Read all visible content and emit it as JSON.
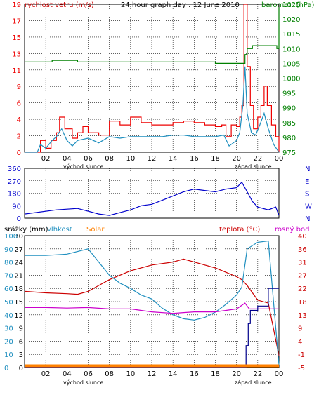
{
  "colors": {
    "wind": "#ee0000",
    "gust": "#ee0000",
    "wind_avg": "#1f8fbf",
    "pressure": "#008000",
    "direction": "#0000cc",
    "temperature": "#cc0000",
    "humidity": "#1f8fbf",
    "dew_point": "#cc00cc",
    "rain": "#00008b",
    "solar": "#ff8000",
    "grid": "#000000"
  },
  "top_panel": {
    "title": "24 hour graph day : 12 June 2010",
    "left_label": "rychlost vetru (m/s)",
    "right_label": "barometr (hPa)"
  },
  "middle_panel": {},
  "bottom_panel": {
    "labels": {
      "rain": "srážky (mm)",
      "humidity": "vlhkost",
      "solar": "Solar",
      "temperature": "teplota (°C)",
      "dew_point": "rosný bod"
    }
  },
  "x_axis": {
    "ticks": [
      "02",
      "04",
      "06",
      "08",
      "10",
      "12",
      "14",
      "16",
      "18",
      "20",
      "22",
      "00"
    ],
    "sunrise_label": "východ slunce",
    "sunset_label": "západ slunce"
  },
  "chart_data": [
    {
      "type": "line",
      "name": "wind",
      "x_unit": "hour",
      "y_left": {
        "label": "rychlost vetru (m/s)",
        "ticks": [
          "0",
          "2",
          "4",
          "6",
          "9",
          "11",
          "13",
          "15",
          "17",
          "19"
        ],
        "ylim": [
          0,
          19
        ]
      },
      "y_right": {
        "label": "barometr (hPa)",
        "ticks": [
          "975",
          "980",
          "985",
          "990",
          "995",
          "1000",
          "1005",
          "1010",
          "1015",
          "1020",
          "1025"
        ],
        "ylim": [
          975,
          1025
        ]
      },
      "series": [
        {
          "name": "",
          "kind": "gust",
          "points": [
            [
              0,
              0
            ],
            [
              1.2,
              0
            ],
            [
              1.5,
              1.5
            ],
            [
              2,
              0.5
            ],
            [
              2.5,
              1.5
            ],
            [
              3,
              2.5
            ],
            [
              3.3,
              4.5
            ],
            [
              3.8,
              3
            ],
            [
              4.5,
              1.8
            ],
            [
              5,
              2.5
            ],
            [
              5.5,
              3.3
            ],
            [
              6,
              2.5
            ],
            [
              7,
              2.2
            ],
            [
              8,
              4
            ],
            [
              9,
              3.5
            ],
            [
              10,
              4.5
            ],
            [
              11,
              3.8
            ],
            [
              12,
              3.5
            ],
            [
              13,
              3.5
            ],
            [
              14,
              3.8
            ],
            [
              15,
              4
            ],
            [
              16,
              3.8
            ],
            [
              17,
              3.5
            ],
            [
              18,
              3.3
            ],
            [
              18.6,
              3.5
            ],
            [
              19,
              2
            ],
            [
              19.5,
              3.5
            ],
            [
              20,
              3.3
            ],
            [
              20.3,
              4.5
            ],
            [
              20.5,
              6
            ],
            [
              20.7,
              19
            ],
            [
              21,
              11
            ],
            [
              21.3,
              6
            ],
            [
              21.6,
              3
            ],
            [
              22,
              4.5
            ],
            [
              22.3,
              6
            ],
            [
              22.6,
              8.5
            ],
            [
              22.9,
              6
            ],
            [
              23.3,
              3.5
            ],
            [
              23.7,
              2
            ],
            [
              24,
              0
            ]
          ]
        },
        {
          "name": "",
          "kind": "average",
          "points": [
            [
              0,
              0
            ],
            [
              1.2,
              0
            ],
            [
              1.5,
              1
            ],
            [
              2,
              0.5
            ],
            [
              2.6,
              1.5
            ],
            [
              3,
              2
            ],
            [
              3.5,
              3
            ],
            [
              4,
              1.5
            ],
            [
              4.5,
              0.8
            ],
            [
              5,
              1.5
            ],
            [
              6,
              1.8
            ],
            [
              7,
              1.2
            ],
            [
              8,
              2
            ],
            [
              9,
              1.8
            ],
            [
              10,
              2
            ],
            [
              11,
              2
            ],
            [
              12,
              2
            ],
            [
              13,
              2
            ],
            [
              14,
              2.2
            ],
            [
              15,
              2.2
            ],
            [
              16,
              2
            ],
            [
              17,
              2
            ],
            [
              18,
              2
            ],
            [
              18.8,
              2.2
            ],
            [
              19.3,
              0.8
            ],
            [
              20,
              1.5
            ],
            [
              20.3,
              2.5
            ],
            [
              20.6,
              6
            ],
            [
              20.8,
              11
            ],
            [
              21,
              5
            ],
            [
              21.4,
              2.5
            ],
            [
              21.8,
              2.2
            ],
            [
              22.2,
              3.5
            ],
            [
              22.6,
              5
            ],
            [
              23,
              3
            ],
            [
              23.5,
              1
            ],
            [
              24,
              0
            ]
          ]
        },
        {
          "name": "",
          "kind": "pressure",
          "axis": "right",
          "points": [
            [
              0,
              1005.5
            ],
            [
              2.4,
              1005.5
            ],
            [
              2.6,
              1006
            ],
            [
              4.6,
              1006
            ],
            [
              5,
              1005.5
            ],
            [
              10,
              1005.5
            ],
            [
              16,
              1005.5
            ],
            [
              17.8,
              1005.5
            ],
            [
              18,
              1005
            ],
            [
              20.5,
              1005
            ],
            [
              20.8,
              1008
            ],
            [
              21,
              1010
            ],
            [
              21.5,
              1011
            ],
            [
              23.8,
              1010
            ],
            [
              24,
              1024
            ]
          ]
        }
      ]
    },
    {
      "type": "scatter",
      "name": "wind_direction",
      "x_unit": "hour",
      "y_left": {
        "ticks": [
          "0",
          "90",
          "180",
          "270",
          "360"
        ],
        "ylim": [
          0,
          360
        ]
      },
      "y_right": {
        "ticks": [
          "N",
          "W",
          "S",
          "E",
          "N"
        ]
      },
      "series": [
        {
          "name": "",
          "points": [
            [
              0,
              30
            ],
            [
              3,
              60
            ],
            [
              5,
              70
            ],
            [
              7,
              30
            ],
            [
              8,
              20
            ],
            [
              9,
              40
            ],
            [
              10,
              60
            ],
            [
              11,
              90
            ],
            [
              12,
              100
            ],
            [
              13,
              130
            ],
            [
              14,
              160
            ],
            [
              15,
              190
            ],
            [
              16,
              210
            ],
            [
              17,
              200
            ],
            [
              18,
              190
            ],
            [
              19,
              210
            ],
            [
              20,
              220
            ],
            [
              20.5,
              260
            ],
            [
              21,
              190
            ],
            [
              21.5,
              120
            ],
            [
              22,
              80
            ],
            [
              23,
              60
            ],
            [
              23.7,
              80
            ],
            [
              24,
              20
            ]
          ]
        }
      ]
    },
    {
      "type": "line",
      "name": "temperature_humidity",
      "x_unit": "hour",
      "y_left": {
        "label": "srážky (mm)",
        "ticks": [
          "0",
          "3",
          "6",
          "9",
          "12",
          "15",
          "18",
          "21",
          "24",
          "27",
          "30"
        ],
        "ylim": [
          0,
          30
        ]
      },
      "y_left_humidity": {
        "label": "vlhkost",
        "ticks": [
          "0",
          "10",
          "20",
          "30",
          "40",
          "50",
          "60",
          "70",
          "80",
          "90",
          "100"
        ],
        "ylim": [
          0,
          100
        ]
      },
      "y_right": {
        "label": "teplota (°C)",
        "ticks": [
          "-5",
          "-1",
          "4",
          "9",
          "13",
          "18",
          "22",
          "27",
          "31",
          "36",
          "40"
        ],
        "ylim": [
          -5,
          40
        ]
      },
      "series": [
        {
          "name": "teplota (°C)",
          "axis": "right",
          "points": [
            [
              0,
              21
            ],
            [
              2,
              20.5
            ],
            [
              4,
              20.2
            ],
            [
              5,
              20
            ],
            [
              6,
              21
            ],
            [
              7,
              23
            ],
            [
              8,
              25
            ],
            [
              10,
              28
            ],
            [
              12,
              30
            ],
            [
              14,
              31
            ],
            [
              15,
              32
            ],
            [
              16,
              31
            ],
            [
              17,
              30
            ],
            [
              18,
              29
            ],
            [
              19,
              27.5
            ],
            [
              20,
              26
            ],
            [
              20.5,
              25
            ],
            [
              21,
              23
            ],
            [
              22,
              18
            ],
            [
              23,
              17
            ],
            [
              24,
              -1
            ]
          ]
        },
        {
          "name": "vlhkost",
          "axis": "humidity",
          "points": [
            [
              0,
              85
            ],
            [
              2,
              85
            ],
            [
              4,
              86
            ],
            [
              5,
              88
            ],
            [
              6,
              90
            ],
            [
              7,
              80
            ],
            [
              8,
              70
            ],
            [
              9,
              64
            ],
            [
              10,
              60
            ],
            [
              11,
              55
            ],
            [
              12,
              52
            ],
            [
              13,
              45
            ],
            [
              14,
              40
            ],
            [
              15,
              37
            ],
            [
              16,
              36
            ],
            [
              17,
              38
            ],
            [
              18,
              42
            ],
            [
              19,
              48
            ],
            [
              20,
              55
            ],
            [
              20.5,
              61
            ],
            [
              21,
              90
            ],
            [
              22,
              95
            ],
            [
              23,
              96
            ],
            [
              24,
              2
            ]
          ]
        },
        {
          "name": "rosný bod",
          "axis": "right",
          "points": [
            [
              0,
              15.5
            ],
            [
              2,
              15.5
            ],
            [
              4,
              15.3
            ],
            [
              6,
              15.5
            ],
            [
              8,
              15
            ],
            [
              10,
              15
            ],
            [
              12,
              14
            ],
            [
              14,
              13.5
            ],
            [
              16,
              14
            ],
            [
              18,
              14
            ],
            [
              20,
              15
            ],
            [
              20.8,
              17
            ],
            [
              21.2,
              15
            ],
            [
              22,
              15
            ],
            [
              24,
              15
            ]
          ]
        },
        {
          "name": "srážky (mm)",
          "axis": "left",
          "points": [
            [
              0,
              0
            ],
            [
              20.7,
              0
            ],
            [
              20.9,
              5
            ],
            [
              21.1,
              10
            ],
            [
              21.3,
              13
            ],
            [
              22,
              14
            ],
            [
              23,
              18
            ],
            [
              24,
              18
            ]
          ]
        },
        {
          "name": "Solar",
          "axis": "left",
          "points": [
            [
              0,
              0.4
            ],
            [
              24,
              0.4
            ]
          ]
        }
      ]
    }
  ]
}
